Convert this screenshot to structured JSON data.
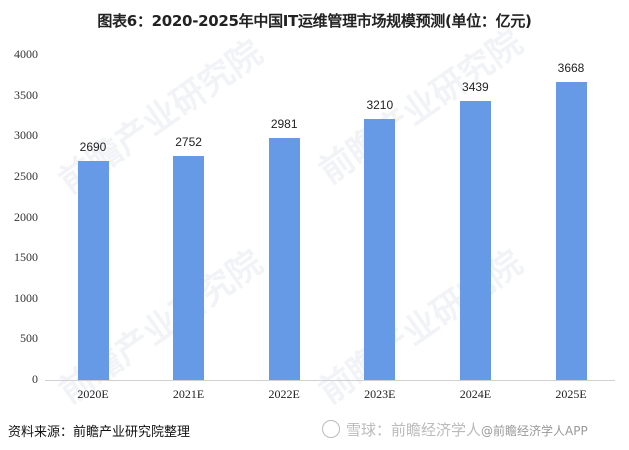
{
  "title": "图表6：2020-2025年中国IT运维管理市场规模预测(单位：亿元)",
  "source": "资料来源：前瞻产业研究院整理",
  "watermark": {
    "prefix": "雪球：前瞻经济学人",
    "tail": "@前瞻经济学人APP",
    "bg_text": "前瞻产业研究院"
  },
  "colors": {
    "bar": "#6699e6",
    "axis": "#d0d0d0",
    "text": "#222222"
  },
  "chart_data": {
    "type": "bar",
    "title": "图表6：2020-2025年中国IT运维管理市场规模预测(单位：亿元)",
    "categories": [
      "2020E",
      "2021E",
      "2022E",
      "2023E",
      "2024E",
      "2025E"
    ],
    "values": [
      2690,
      2752,
      2981,
      3210,
      3439,
      3668
    ],
    "xlabel": "",
    "ylabel": "亿元",
    "ylim": [
      0,
      4000
    ],
    "yticks": [
      0,
      500,
      1000,
      1500,
      2000,
      2500,
      3000,
      3500,
      4000
    ],
    "grid": false,
    "legend": null,
    "data_labels": true
  }
}
